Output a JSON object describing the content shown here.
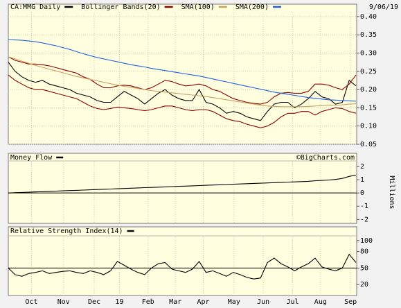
{
  "chart_data": [
    {
      "type": "line",
      "annotation": "9/06/19",
      "x": [
        0,
        1,
        2,
        3,
        4,
        5,
        6,
        7,
        8,
        9,
        10,
        11,
        12,
        13,
        14,
        15,
        16,
        17,
        18,
        19,
        20,
        21,
        22,
        23,
        24,
        25,
        26,
        27,
        28,
        29,
        30,
        31,
        32,
        33,
        34,
        35,
        36,
        37,
        38,
        39,
        40,
        41,
        42,
        43,
        44,
        45,
        46,
        47,
        48,
        49,
        50,
        51
      ],
      "xlim": [
        0,
        51.1
      ],
      "ylim": [
        0.05,
        0.434
      ],
      "yticks": [
        {
          "value": 0.4,
          "label": "0.40"
        },
        0.35,
        {
          "value": 0.3,
          "label": "0.30"
        },
        0.25,
        {
          "value": 0.2,
          "label": "0.20"
        },
        0.15,
        {
          "value": 0.1,
          "label": "0.10"
        },
        0.05
      ],
      "grid": true,
      "series": [
        {
          "name": "CA:MMG Daily",
          "color": "#000000",
          "values": [
            0.275,
            0.25,
            0.235,
            0.225,
            0.22,
            0.225,
            0.215,
            0.21,
            0.205,
            0.2,
            0.19,
            0.185,
            0.18,
            0.17,
            0.165,
            0.165,
            0.18,
            0.195,
            0.185,
            0.175,
            0.16,
            0.175,
            0.19,
            0.2,
            0.185,
            0.175,
            0.17,
            0.17,
            0.2,
            0.165,
            0.16,
            0.15,
            0.135,
            0.14,
            0.135,
            0.125,
            0.12,
            0.115,
            0.14,
            0.16,
            0.165,
            0.165,
            0.15,
            0.16,
            0.175,
            0.195,
            0.18,
            0.175,
            0.16,
            0.165,
            0.225,
            0.21
          ]
        },
        {
          "name": "Bollinger Bands(20)",
          "color": "#8b0000",
          "values": [
            0.29,
            0.28,
            0.275,
            0.27,
            0.27,
            0.268,
            0.265,
            0.26,
            0.255,
            0.25,
            0.245,
            0.235,
            0.228,
            0.215,
            0.205,
            0.205,
            0.21,
            0.212,
            0.21,
            0.205,
            0.2,
            0.205,
            0.215,
            0.225,
            0.222,
            0.215,
            0.21,
            0.212,
            0.215,
            0.21,
            0.2,
            0.195,
            0.185,
            0.175,
            0.17,
            0.165,
            0.162,
            0.16,
            0.165,
            0.18,
            0.19,
            0.192,
            0.19,
            0.19,
            0.195,
            0.215,
            0.215,
            0.212,
            0.205,
            0.2,
            0.215,
            0.24
          ],
          "lower": [
            0.24,
            0.225,
            0.215,
            0.205,
            0.2,
            0.2,
            0.195,
            0.19,
            0.185,
            0.18,
            0.175,
            0.165,
            0.155,
            0.148,
            0.145,
            0.148,
            0.152,
            0.15,
            0.148,
            0.145,
            0.142,
            0.145,
            0.15,
            0.155,
            0.155,
            0.15,
            0.145,
            0.142,
            0.145,
            0.145,
            0.14,
            0.13,
            0.12,
            0.115,
            0.112,
            0.105,
            0.1,
            0.095,
            0.1,
            0.11,
            0.125,
            0.135,
            0.135,
            0.14,
            0.14,
            0.13,
            0.14,
            0.145,
            0.15,
            0.148,
            0.14,
            0.135
          ]
        },
        {
          "name": "SMA(100)",
          "color": "#c8a060",
          "values": [
            0.29,
            0.284,
            0.278,
            0.272,
            0.266,
            0.261,
            0.256,
            0.251,
            0.246,
            0.241,
            0.236,
            0.232,
            0.228,
            0.224,
            0.22,
            0.216,
            0.212,
            0.209,
            0.206,
            0.203,
            0.2,
            0.197,
            0.195,
            0.193,
            0.191,
            0.189,
            0.187,
            0.185,
            0.183,
            0.181,
            0.178,
            0.175,
            0.172,
            0.169,
            0.166,
            0.163,
            0.16,
            0.157,
            0.155,
            0.154,
            0.153,
            0.153,
            0.153,
            0.153,
            0.154,
            0.155,
            0.156,
            0.157,
            0.157,
            0.158,
            0.16,
            0.161
          ]
        },
        {
          "name": "SMA(200)",
          "color": "#2060e0",
          "values": [
            0.337,
            0.336,
            0.335,
            0.333,
            0.331,
            0.328,
            0.324,
            0.32,
            0.315,
            0.31,
            0.304,
            0.298,
            0.293,
            0.288,
            0.284,
            0.28,
            0.276,
            0.272,
            0.268,
            0.265,
            0.262,
            0.258,
            0.255,
            0.252,
            0.249,
            0.246,
            0.243,
            0.24,
            0.237,
            0.233,
            0.229,
            0.225,
            0.221,
            0.217,
            0.213,
            0.209,
            0.205,
            0.201,
            0.197,
            0.193,
            0.19,
            0.187,
            0.184,
            0.181,
            0.178,
            0.176,
            0.174,
            0.172,
            0.171,
            0.17,
            0.169,
            0.168
          ]
        }
      ]
    },
    {
      "type": "line",
      "title": "Money Flow",
      "annotation": "©BigCharts.com",
      "y_label": "Millions",
      "x": [
        0,
        1,
        2,
        3,
        4,
        5,
        6,
        7,
        8,
        9,
        10,
        11,
        12,
        13,
        14,
        15,
        16,
        17,
        18,
        19,
        20,
        21,
        22,
        23,
        24,
        25,
        26,
        27,
        28,
        29,
        30,
        31,
        32,
        33,
        34,
        35,
        36,
        37,
        38,
        39,
        40,
        41,
        42,
        43,
        44,
        45,
        46,
        47,
        48,
        49,
        50,
        51
      ],
      "xlim": [
        0,
        51.1
      ],
      "ylim": [
        -2.3,
        3
      ],
      "yticks": [
        2,
        1,
        0,
        -1,
        -2
      ],
      "reference_line": 0,
      "series": [
        {
          "name": "Money Flow",
          "color": "#000000",
          "values": [
            0,
            0.02,
            0.04,
            0.06,
            0.08,
            0.1,
            0.12,
            0.14,
            0.16,
            0.18,
            0.2,
            0.22,
            0.24,
            0.26,
            0.28,
            0.3,
            0.32,
            0.34,
            0.36,
            0.38,
            0.4,
            0.42,
            0.44,
            0.46,
            0.48,
            0.5,
            0.52,
            0.54,
            0.56,
            0.58,
            0.6,
            0.62,
            0.64,
            0.66,
            0.68,
            0.7,
            0.72,
            0.74,
            0.76,
            0.78,
            0.8,
            0.82,
            0.84,
            0.86,
            0.88,
            0.92,
            0.95,
            0.98,
            1.02,
            1.1,
            1.25,
            1.35
          ]
        }
      ]
    },
    {
      "type": "line",
      "title": "Relative Strength Index(14)",
      "x": [
        0,
        1,
        2,
        3,
        4,
        5,
        6,
        7,
        8,
        9,
        10,
        11,
        12,
        13,
        14,
        15,
        16,
        17,
        18,
        19,
        20,
        21,
        22,
        23,
        24,
        25,
        26,
        27,
        28,
        29,
        30,
        31,
        32,
        33,
        34,
        35,
        36,
        37,
        38,
        39,
        40,
        41,
        42,
        43,
        44,
        45,
        46,
        47,
        48,
        49,
        50,
        51
      ],
      "xlim": [
        0,
        51.1
      ],
      "ylim": [
        0,
        125
      ],
      "yticks": [
        100,
        80,
        50,
        20
      ],
      "reference_line": 50,
      "xticks": [
        {
          "value": 3.4,
          "label": "Oct"
        },
        {
          "value": 8.1,
          "label": "Nov"
        },
        {
          "value": 12.6,
          "label": "Dec"
        },
        {
          "value": 16.3,
          "label": "19"
        },
        {
          "value": 20.5,
          "label": "Feb"
        },
        {
          "value": 24.5,
          "label": "Mar"
        },
        {
          "value": 28.6,
          "label": "Apr"
        },
        {
          "value": 33.1,
          "label": "May"
        },
        {
          "value": 37.4,
          "label": "Jun"
        },
        {
          "value": 41.7,
          "label": "Jul"
        },
        {
          "value": 45.8,
          "label": "Aug"
        },
        {
          "value": 50.2,
          "label": "Sep"
        }
      ],
      "series": [
        {
          "name": "Relative Strength Index(14)",
          "color": "#000000",
          "values": [
            50,
            38,
            35,
            40,
            42,
            45,
            40,
            42,
            44,
            45,
            42,
            40,
            45,
            42,
            38,
            45,
            62,
            55,
            48,
            42,
            38,
            50,
            58,
            60,
            48,
            45,
            42,
            48,
            62,
            42,
            45,
            40,
            35,
            42,
            38,
            33,
            30,
            32,
            60,
            68,
            58,
            52,
            45,
            52,
            58,
            68,
            52,
            48,
            45,
            50,
            75,
            60
          ]
        }
      ]
    }
  ]
}
